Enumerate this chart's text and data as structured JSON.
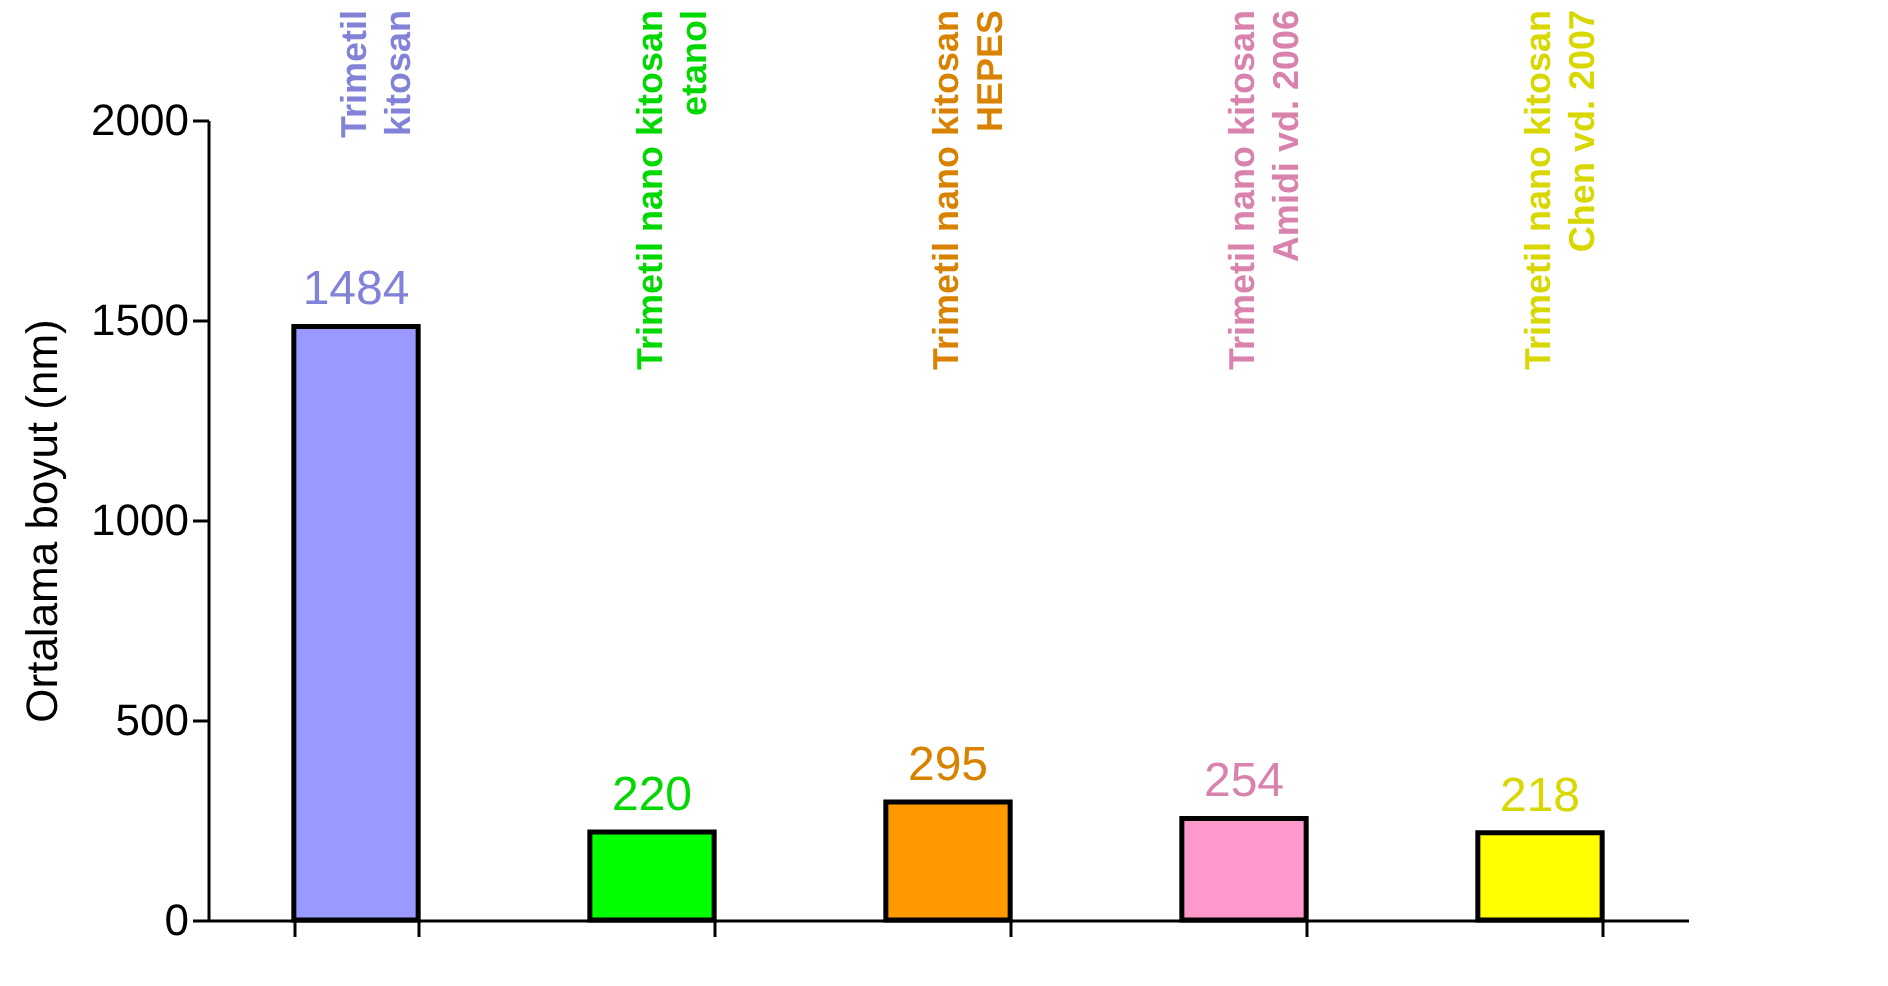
{
  "chart_data": {
    "type": "bar",
    "ylabel": "Ortalama boyut (nm)",
    "categories": [
      "Trimetil\nkitosan",
      "Trimetil nano kitosan\netanol",
      "Trimetil nano kitosan\nHEPES",
      "Trimetil nano kitosan\nAmidi vd. 2006",
      "Trimetil nano kitosan\nChen  vd. 2007"
    ],
    "values": [
      1484,
      220,
      295,
      254,
      218
    ],
    "colors": [
      "#9999ff",
      "#00ff00",
      "#ff9900",
      "#ff99cc",
      "#ffff00"
    ],
    "ylim": [
      0,
      2000
    ],
    "yticks": [
      0,
      500,
      1000,
      1500,
      2000
    ],
    "data_labels": true,
    "grid": false,
    "tick_labels": "y"
  }
}
